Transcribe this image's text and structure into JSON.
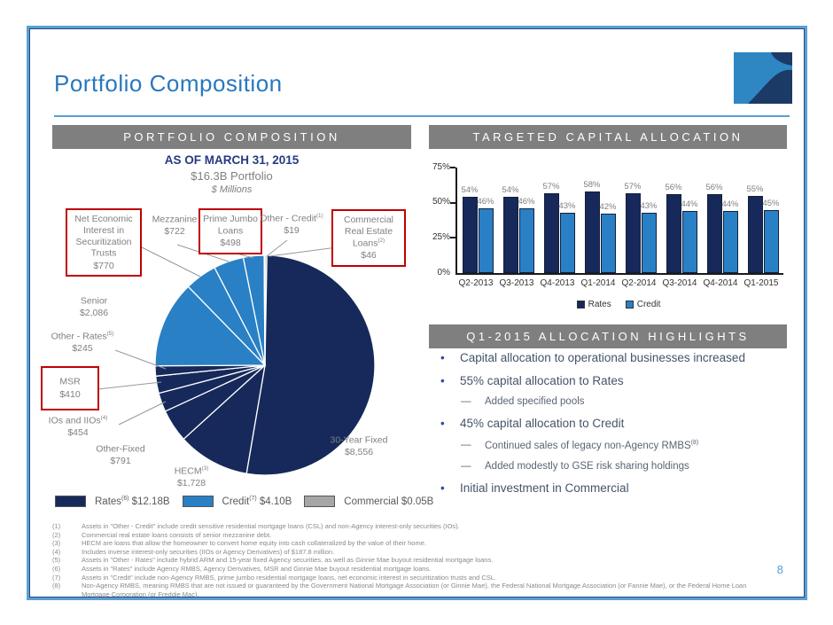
{
  "slide": {
    "title": "Portfolio Composition",
    "page_number": "8"
  },
  "colors": {
    "accent_blue": "#2878be",
    "header_gray": "#7f7f7f",
    "callout_red": "#c00000",
    "rates_navy": "#16295a",
    "credit_blue": "#2980c5",
    "commercial_gray": "#a6a6a6"
  },
  "left_panel": {
    "header": "PORTFOLIO COMPOSITION",
    "as_of": "AS OF MARCH 31, 2015",
    "subtitle": "$16.3B Portfolio",
    "units": "$ Millions",
    "legend": [
      {
        "label": "Rates",
        "sup": "(6)",
        "value": "$12.18B",
        "color": "#16295a"
      },
      {
        "label": "Credit",
        "sup": "(7)",
        "value": "$4.10B",
        "color": "#2980c5"
      },
      {
        "label": "Commercial",
        "sup": "",
        "value": "$0.05B",
        "color": "#a6a6a6"
      }
    ]
  },
  "right_panel": {
    "header": "TARGETED CAPITAL ALLOCATION",
    "highlights_header": "Q1-2015 ALLOCATION HIGHLIGHTS",
    "highlights": [
      {
        "level": 1,
        "text": "Capital allocation to operational businesses increased",
        "sup": ""
      },
      {
        "level": 1,
        "text": "55% capital allocation to Rates",
        "sup": ""
      },
      {
        "level": 2,
        "text": "Added specified pools",
        "sup": ""
      },
      {
        "level": 1,
        "text": "45% capital allocation to Credit",
        "sup": ""
      },
      {
        "level": 2,
        "text": "Continued sales of legacy non-Agency RMBS",
        "sup": "(8)"
      },
      {
        "level": 2,
        "text": "Added modestly to GSE risk sharing holdings",
        "sup": ""
      },
      {
        "level": 1,
        "text": "Initial investment in Commercial",
        "sup": ""
      }
    ]
  },
  "chart_data": [
    {
      "type": "pie",
      "title": "Portfolio Composition as of March 31, 2015 ($ Millions, total $16.3B)",
      "start_angle": "12 o'clock, clockwise",
      "slices": [
        {
          "label": "Commercial Real Estate Loans",
          "sup": "(2)",
          "value": 46,
          "value_display": "$46",
          "group": "Commercial",
          "color": "#a6a6a6",
          "boxed": true
        },
        {
          "label": "30-Year Fixed",
          "sup": "",
          "value": 8556,
          "value_display": "$8,556",
          "group": "Rates",
          "color": "#16295a",
          "boxed": false
        },
        {
          "label": "HECM",
          "sup": "(3)",
          "value": 1728,
          "value_display": "$1,728",
          "group": "Rates",
          "color": "#16295a",
          "boxed": false
        },
        {
          "label": "Other-Fixed",
          "sup": "",
          "value": 791,
          "value_display": "$791",
          "group": "Rates",
          "color": "#16295a",
          "boxed": false
        },
        {
          "label": "IOs and IIOs",
          "sup": "(4)",
          "value": 454,
          "value_display": "$454",
          "group": "Rates",
          "color": "#16295a",
          "boxed": false
        },
        {
          "label": "MSR",
          "sup": "",
          "value": 410,
          "value_display": "$410",
          "group": "Rates",
          "color": "#16295a",
          "boxed": true
        },
        {
          "label": "Other - Rates",
          "sup": "(5)",
          "value": 245,
          "value_display": "$245",
          "group": "Rates",
          "color": "#16295a",
          "boxed": false
        },
        {
          "label": "Senior",
          "sup": "",
          "value": 2086,
          "value_display": "$2,086",
          "group": "Credit",
          "color": "#2980c5",
          "boxed": false
        },
        {
          "label": "Net Economic Interest in Securitization Trusts",
          "sup": "",
          "value": 770,
          "value_display": "$770",
          "group": "Credit",
          "color": "#2980c5",
          "boxed": true
        },
        {
          "label": "Mezzanine",
          "sup": "",
          "value": 722,
          "value_display": "$722",
          "group": "Credit",
          "color": "#2980c5",
          "boxed": false
        },
        {
          "label": "Prime Jumbo Loans",
          "sup": "",
          "value": 498,
          "value_display": "$498",
          "group": "Credit",
          "color": "#2980c5",
          "boxed": true
        },
        {
          "label": "Other - Credit",
          "sup": "(1)",
          "value": 19,
          "value_display": "$19",
          "group": "Credit",
          "color": "#2980c5",
          "boxed": false
        }
      ]
    },
    {
      "type": "bar",
      "title": "Targeted Capital Allocation",
      "categories": [
        "Q2-2013",
        "Q3-2013",
        "Q4-2013",
        "Q1-2014",
        "Q2-2014",
        "Q3-2014",
        "Q4-2014",
        "Q1-2015"
      ],
      "series": [
        {
          "name": "Rates",
          "color": "#16295a",
          "values": [
            54,
            54,
            57,
            58,
            57,
            56,
            56,
            55
          ]
        },
        {
          "name": "Credit",
          "color": "#2980c5",
          "values": [
            46,
            46,
            43,
            42,
            43,
            44,
            44,
            45
          ]
        }
      ],
      "unit": "%",
      "ylim": [
        0,
        75
      ],
      "yticks": [
        "0%",
        "25%",
        "50%",
        "75%"
      ],
      "grid": false,
      "legend_position": "bottom"
    }
  ],
  "footnotes": [
    {
      "num": "(1)",
      "text": "Assets in \"Other - Credit\" include credit sensitive residential mortgage loans (CSL) and non-Agency interest-only securities (IOs)."
    },
    {
      "num": "(2)",
      "text": "Commercial real estate loans consists of senior mezzanine debt."
    },
    {
      "num": "(3)",
      "text": "HECM are loans that allow the homeowner to convert home equity into cash collateralized by the value of their home."
    },
    {
      "num": "(4)",
      "text": "Includes inverse interest-only securities (IIOs or Agency Derivatives) of $187.8 million."
    },
    {
      "num": "(5)",
      "text": "Assets in \"Other - Rates\" include hybrid ARM and 15-year fixed Agency securities, as well as Ginnie Mae buyout residential mortgage loans."
    },
    {
      "num": "(6)",
      "text": "Assets in \"Rates\" include Agency RMBS, Agency Derivatives, MSR and Ginnie Mae buyout residential mortgage loans."
    },
    {
      "num": "(7)",
      "text": "Assets in \"Credit\" include non-Agency RMBS, prime jumbo residential mortgage loans, net economic interest in securitization trusts and CSL."
    },
    {
      "num": "(8)",
      "text": "Non-Agency RMBS, meaning RMBS that are not issued or guaranteed by the Government National Mortgage Association (or Ginnie Mae), the Federal National Mortgage Association (or Fannie Mae), or the Federal Home Loan Mortgage Corporation (or Freddie Mac)."
    }
  ]
}
